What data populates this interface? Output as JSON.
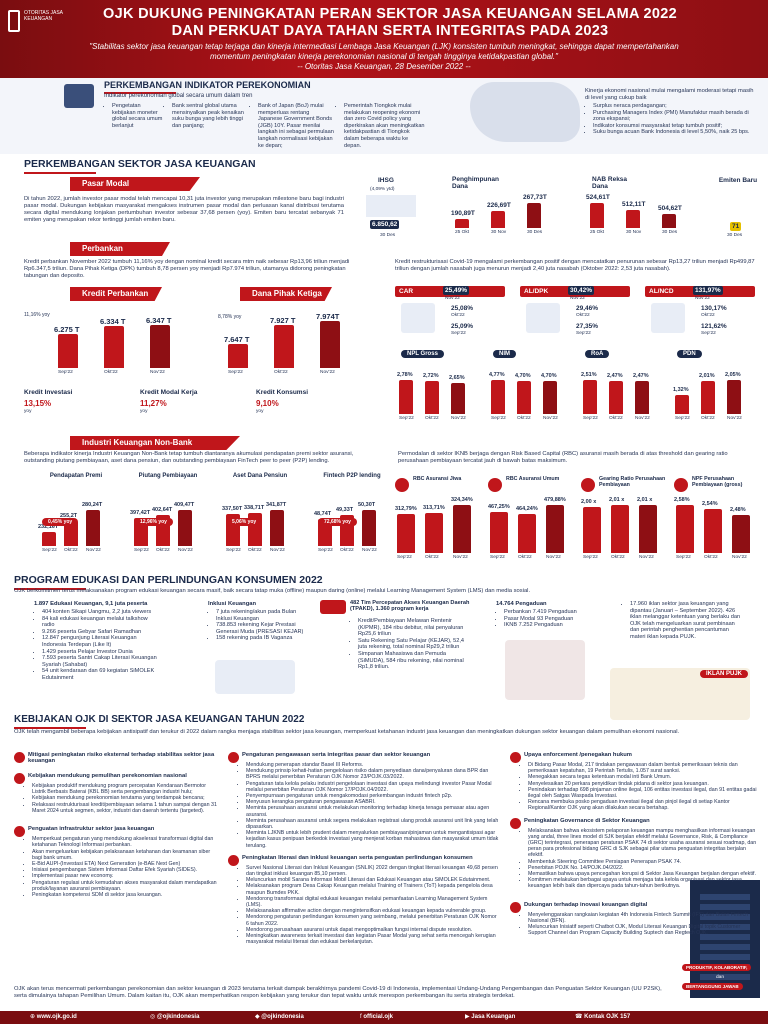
{
  "header": {
    "logo_text": "OTORITAS JASA KEUANGAN",
    "title_line1": "OJK DUKUNG PENINGKATAN PERAN SEKTOR JASA KEUANGAN SELAMA 2022",
    "title_line2": "DAN PERKUAT DAYA TAHAN SERTA INTEGRITAS PADA 2023",
    "quote_line1": "\"Stabilitas sektor jasa keuangan tetap terjaga dan kinerja intermediasi Lembaga Jasa Keuangan (LJK) konsisten tumbuh meningkat, sehingga dapat mempertahankan",
    "quote_line2": "momentum peningkatan kinerja perekonomian nasional di tengah tingginya ketidakpastian global.\"",
    "quote_line3": "-- Otoritas Jasa Keuangan, 28 Desember 2022 --"
  },
  "macro": {
    "title": "PERKEMBANGAN INDIKATOR PEREKONOMIAN",
    "subtitle": "Indikator perekonomian global secara umum dalam tren",
    "items": [
      "Pengetatan kebijakan moneter global secara umum berlanjut",
      "Bank sentral global utama mensinyalkan peak kenaikan suku bunga yang lebih tinggi dan panjang;",
      "Bank of Japan (BoJ) mulai memperluas rentang Japanese Government Bonds (JGB) 10Y. Pasar menilai langkah ini sebagai permulaan langkah normalisasi kebijakan ke depan;",
      "Pemerintah Tiongkok mulai melakukan reopening ekonomi dan zero Covid policy yang diperkirakan akan meningkatkan ketidakpastian di Tiongkok dalam beberapa waktu ke depan."
    ],
    "domestic_intro": "Kinerja ekonomi nasional mulai mengalami moderasi tetapi masih di level yang cukup baik",
    "domestic": [
      "Surplus neraca perdagangan;",
      "Purchasing Managers Index (PMI) Manufaktur masih berada di zona ekspansi;",
      "Indikator konsumsi masyarakat tetap tumbuh positif;",
      "Suku bunga acuan Bank Indonesia di level 5,50%, naik 25 bps."
    ]
  },
  "sjk": {
    "title": "PERKEMBANGAN SEKTOR JASA KEUANGAN",
    "pasar_modal": {
      "ribbon": "Pasar Modal",
      "text": "Di tahun 2022, jumlah investor pasar modal telah mencapai 10,31 juta investor yang merupakan milestone baru bagi industri pasar modal. Dukungan kebijakan masyarakat mengakses instrumen pasar modal dan perluasan kanal distribusi terutama secara digital mendukung lonjakan pertumbuhan investor sebesar 37,68 persen (yoy). Emiten baru tercatat sebanyak 71 emiten yang merupakan rekor tertinggi jumlah emiten baru.",
      "ihsg": {
        "label": "IHSG",
        "sub": "(4,09% ytd)",
        "value": "6.850,62",
        "date": "30 Des"
      },
      "dana": {
        "label": "Penghimpunan Dana",
        "values": [
          "190,89T",
          "226,69T",
          "267,73T"
        ],
        "dates": [
          "25 Okt",
          "30 Nov",
          "30 Des"
        ]
      },
      "nab": {
        "label": "NAB Reksa Dana",
        "values": [
          "524,61T",
          "512,11T",
          "504,62T"
        ],
        "dates": [
          "25 Okt",
          "30 Nov",
          "30 Des"
        ]
      },
      "emiten": {
        "label": "Emiten Baru",
        "value": "71",
        "date": "30 Des"
      }
    },
    "perbankan": {
      "ribbon": "Perbankan",
      "text_left": "Kredit perbankan November 2022 tumbuh 11,16% yoy dengan nominal kredit secara mtm naik sebesar Rp13,96 triliun menjadi Rp6.347,5 triliun. Dana Pihak Ketiga (DPK) tumbuh 8,78 persen yoy menjadi Rp7.974 triliun, utamanya didorong peningkatan tabungan dan deposito.",
      "text_right": "Kredit restrukturisasi Covid-19 mengalami perkembangan positif dengan mencatatkan penurunan sebesar Rp13,27 triliun menjadi Rp499,87 triliun dengan jumlah nasabah juga menurun menjadi 2,40 juta nasabah (Oktober 2022: 2,53 juta nasabah).",
      "kredit": {
        "label": "Kredit Perbankan",
        "pct": "11,16% yoy",
        "values": [
          "6.275 T",
          "6.334 T",
          "6.347 T"
        ],
        "months": [
          "Sep'22",
          "Okt'22",
          "Nov'22"
        ]
      },
      "dpk": {
        "label": "Dana Pihak Ketiga",
        "pct": "8,78% yoy",
        "values": [
          "7.647 T",
          "7.927 T",
          "7.974T"
        ],
        "months": [
          "Sep'22",
          "Okt'22",
          "Nov'22"
        ]
      },
      "kinds": [
        {
          "label": "Kredit Investasi",
          "value": "13,15%",
          "unit": "yoy"
        },
        {
          "label": "Kredit Modal Kerja",
          "value": "11,27%",
          "unit": "yoy"
        },
        {
          "label": "Kredit Konsumsi",
          "value": "9,10%",
          "unit": "yoy"
        }
      ],
      "ratios": [
        {
          "label": "CAR",
          "v1": "25,49%",
          "m1": "Nov'22",
          "v2": "25,08%",
          "m2": "Okt'22",
          "v3": "25,09%",
          "m3": "Sep'22"
        },
        {
          "label": "AL/DPK",
          "v1": "30,42%",
          "m1": "Nov'22",
          "v2": "29,46%",
          "m2": "Okt'22",
          "v3": "27,35%",
          "m3": "Sep'22"
        },
        {
          "label": "AL/NCD",
          "v1": "131,97%",
          "m1": "Nov'22",
          "v2": "130,17%",
          "m2": "Okt'22",
          "v3": "121,62%",
          "m3": "Sep'22"
        }
      ],
      "npl": [
        {
          "label": "NPL Gross",
          "values": [
            "2,78%",
            "2,72%",
            "2,65%"
          ]
        },
        {
          "label": "NIM",
          "values": [
            "4,77%",
            "4,70%",
            "4,70%"
          ]
        },
        {
          "label": "RoA",
          "values": [
            "2,51%",
            "2,47%",
            "2,47%"
          ]
        },
        {
          "label": "PDN",
          "values": [
            "1,32%",
            "2,01%",
            "2,05%"
          ]
        }
      ],
      "npl_months": [
        "Sep'22",
        "Okt'22",
        "Nov'22"
      ]
    },
    "iknb": {
      "ribbon": "Industri Keuangan Non-Bank",
      "text_left": "Beberapa indikator kinerja Industri Keuangan Non-Bank tetap tumbuh diantaranya akumulasi pendapatan premi sektor asuransi, outstanding piutang pembiayaan, aset dana pensiun, dan outstanding pembiayaan FinTech peer to peer (P2P) lending.",
      "text_right": "Permodalan di sektor IKNB berjaga dengan Risk Based Capital (RBC) asuransi masih berada di atas threshold dan gearing ratio perusahaan pembiayaan tercatat jauh di bawah batas maksimum.",
      "cols": [
        {
          "label": "Pendapatan Premi",
          "values": [
            "232,16T",
            "255,2T",
            "280,24T"
          ],
          "pct": "0,45% yoy"
        },
        {
          "label": "Piutang Pembiayaan",
          "values": [
            "397,42T",
            "402,64T",
            "409,47T"
          ],
          "pct": "12,96% yoy"
        },
        {
          "label": "Aset Dana Pensiun",
          "values": [
            "337,50T",
            "338,71T",
            "341,87T"
          ],
          "pct": "5,06% yoy"
        },
        {
          "label": "Fintech P2P lending",
          "values": [
            "48,74T",
            "49,33T",
            "50,30T"
          ],
          "pct": "72,68% yoy"
        }
      ],
      "months": [
        "Sep'22",
        "Okt'22",
        "Nov'22"
      ],
      "rbc": [
        {
          "label": "RBC Asuransi Jiwa",
          "values": [
            "312,79%",
            "313,71%",
            "324,34%"
          ]
        },
        {
          "label": "RBC Asuransi Umum",
          "values": [
            "467,25%",
            "464,24%",
            "479,88%"
          ]
        },
        {
          "label": "Gearing Ratio Perusahaan Pembiayaan",
          "values": [
            "2,00 x",
            "2,01 x",
            "2,01 x"
          ]
        },
        {
          "label": "NPF Perusahaan Pembiayaan (gross)",
          "values": [
            "2,58%",
            "2,54%",
            "2,48%"
          ]
        }
      ]
    }
  },
  "edukasi": {
    "title": "PROGRAM EDUKASI DAN PERLINDUNGAN KONSUMEN 2022",
    "intro": "OJK berkomitmen terus melaksanakan program edukasi keuangan secara masif, baik secara tatap muka (offline) maupun daring (online) melalui Learning Management System (LMS) dan media sosial.",
    "col1_head": "1.897 Edukasi Keuangan, 9,1 juta peserta",
    "col1": [
      "404 konten Sikapi Uangmu, 2,2 juta viewers",
      "84 kali edukasi keuangan melalui talkshow radio",
      "9.266 peserta Gebyar Safari Ramadhan",
      "12.847 pengunjung Literasi Keuangan Indonesia Terdepan (Like It)",
      "1.429 peserta Pelajar Investor Dunia",
      "7.593 peserta Santri Cakap Literasi Keuangan Syariah (Sahabat)",
      "54 unit kendaraan dan 69 kegiatan SiMOLEK Edutainment"
    ],
    "col2_head": "Inklusi Keuangan",
    "col2": [
      "7 juta rekening/akun pada Bulan Inklusi Keuangan",
      "738.853 rekening Kejar Prestasi Generasi Muda (PRESASI KEJAR)",
      "158 rekening pada IB Vaganza"
    ],
    "col3_head": "482 Tim Percepatan Akses Keuangan Daerah (TPAKD), 1.360 program kerja",
    "col3": [
      "Kredit/Pembiayaan Melawan Rentenir (K/PMR), 184 ribu debitur, nilai penyaluran Rp25,6 triliun",
      "Satu Rekening Satu Pelajar (KEJAR), 52,4 juta rekening, total nominal Rp29,2 triliun",
      "Simpanan Mahasiswa dan Pemuda (SiMUDA), 584 ribu rekening, nilai nominal Rp1,8 triliun."
    ],
    "col4_head": "14.764 Pengaduan",
    "col4": [
      "Perbankan 7.419 Pengaduan",
      "Pasar Modal 93 Pengaduan",
      "IKNB 7.252 Pengaduan"
    ],
    "col5": "17.960 iklan sektor jasa keuangan yang dipantau (Januari – September 2022). 426 iklan melanggar ketentuan yang berlaku dan OJK telah mengeluarkan surat pembinaan dan perintah penghentian pencantuman materi iklan kepada PUJK.",
    "iklan_badge": "IKLAN PUJK"
  },
  "kebijakan": {
    "title": "KEBIJAKAN OJK DI SEKTOR JASA KEUANGAN TAHUN 2022",
    "intro": "OJK telah mengambil beberapa kebijakan antisipatif dan terukur di 2022 dalam rangka menjaga stabilitas sektor jasa keuangan, memperkuat ketahanan industri jasa keuangan dan meningkatkan dukungan sektor keuangan dalam pemulihan ekonomi nasional.",
    "left": [
      {
        "head": "Mitigasi peningkatan risiko eksternal terhadap stabilitas sektor jasa keuangan",
        "items": []
      },
      {
        "head": "Kebijakan mendukung pemulihan perekonomian nasional",
        "items": [
          "Kebijakan produktif mendukung program percepatan Kendaraan Bermotor Listrik Berbasis Baterai (KBL BB) serta pengembangan industri hulu;",
          "Kebijakan mendukung perekonomian terutama yang terdampak bencana;",
          "Relaksasi restrukturisasi kredit/pembiayaan selama 1 tahun sampai dengan 31 Maret 2024 untuk segmen, sektor, industri dan daerah tertentu (targeted)."
        ]
      },
      {
        "head": "Penguatan infrastruktur sektor jasa keuangan",
        "items": [
          "Memperkuat pengaturan yang mendukung akselerasi transformasi digital dan ketahanan Teknologi Informasi perbankan.",
          "Akan mengeluarkan kebijakan pelaksanaan ketahanan dan keamanan siber bagi bank umum.",
          "E-Bid AUPI-(Investasi ETA) Next Generation (e-BAE Next Gen)",
          "Inisiasi pengembangan Sistem Informasi Daftar Efek Syariah (SIDES).",
          "Implementasi pasar new economy.",
          "Pengaturan regulasi untuk kemudahan akses masyarakat dalam mendapatkan produk/layanan asuransi pembiayaan.",
          "Peningkatan kompetensi SDM di sektor jasa keuangan."
        ]
      }
    ],
    "mid": [
      {
        "head": "Pengaturan pengawasan serta integritas pasar dan sektor keuangan",
        "items": [
          "Mendukung penerapan standar Basel III Reforms.",
          "Mendukung prinsip kehati-hatian pengelolaan risiko dalam penyediaan dana/penyaluran dana BPR dan BPRS melalui penerbitan Peraturan OJK Nomor 23/POJK.03/2022.",
          "Pengaturan tata kelola pelaku industri pengelolaan investasi dan upaya melindungi investor Pasar Modal melalui penerbitan Peraturan OJK Nomor 17/POJK.04/2022.",
          "Penyempurnaan pengaturan untuk mengakomodasi perkembangan industri fintech p2p.",
          "Menyusun kerangka pengaturan pengawasan ASABRI.",
          "Meminta perusahaan asuransi untuk melakukan monitoring terhadap kinerja tenaga pemasar atau agen asuransi.",
          "Meminta perusahaan asuransi untuk segera melakukan registrasi ulang produk asuransi unit link yang telah dipasarkan.",
          "Meminta LJKNB untuk lebih prudent dalam menyalurkan pembiayaan/pinjaman untuk mengantisipasi agar kejadian kasus penipuan berkedok investasi yang menjerat korban mahasiswa dan masyarakat umum tidak terulang."
        ]
      },
      {
        "head": "Peningkatan literasi dan inklusi keuangan serta penguatan perlindungan konsumen",
        "items": [
          "Survei Nasional Literasi dan Inklusi Keuangan (SNLIK) 2022 dengan tingkat literasi keuangan 49,68 persen dan tingkat inklusi keuangan 85,10 persen.",
          "Meluncurkan mobil Sarana Informasi Mobil Literasi dan Edukasi Keuangan atau SiMOLEK Edutainment.",
          "Melaksanakan program Desa Cakap Keuangan melalui Training of Trainers (ToT) kepada pengelola desa maupun Bumdes PKK.",
          "Mendorong transformasi digital edukasi keuangan melalui pemanfaatan Learning Management System (LMS).",
          "Melaksanakan affirmative action dengan mengintensifkan edukasi keuangan kepada vulnerable group.",
          "Mendorong pengaturan perlindungan konsumen yang seimbang, melalui penerbitan Peraturan OJK Nomor 6 tahun 2022.",
          "Mendorong perusahaan asuransi untuk dapat mengoptimalkan fungsi internal dispute resolution.",
          "Meningkatkan awareness terkait investasi dan kegiatan Pasar Modal yang sehat serta mencegah kerugian masyarakat melalui literasi dan edukasi berkelanjutan."
        ]
      }
    ],
    "right": [
      {
        "head": "Upaya enforcement /penegakan hukum",
        "items": [
          "Di Bidang Pasar Modal, 217 tindakan pengawasan dalam bentuk pemeriksaan teknis dan pemeriksaan kepatuhan, 19 Perintah Tertulis, 1.057 surat sanksi.",
          "Menegakkan secara tegas ketentuan modal inti Bank Umum.",
          "Menyelesaikan 20 perkara penyidikan tindak pidana di sektor jasa keuangan.",
          "Penindakan terhadap 698 pinjaman online ilegal, 106 entitas investasi ilegal, dan 91 entitas gadai ilegal oleh Satgas Waspada Investasi.",
          "Rencana membuka posko pengaduan investasi ilegal dan pinjol ilegal di setiap Kantor Regional/Kantor OJK yang akan dilakukan secara bertahap."
        ]
      },
      {
        "head": "Peningkatan Governance di Sektor Keuangan",
        "items": [
          "Melaksanakan bahwa ekosistem pelaporan keuangan mampu menghasilkan informasi keuangan yang andal, three lines model di SJK berjalan efektif melalui Governance, Risk, & Compliance (GRC) terintegrasi, penerapan peraturan PSAK 74 di sektor usaha asuransi sesuai roadmap, dan peran para profesional bidang GRC di SJK sebagai pilar utama penguatan integritas berjalan efektif.",
          "Membentuk Steering Committee Persiapan Penerapan PSAK 74.",
          "Penerbitan POJK No. 14/POJK.04/2022.",
          "Memastikan bahwa upaya pencegahan korupsi di Sektor Jasa Keuangan berjalan dengan efektif.",
          "Komitmen melakukan berbagai upaya untuk menjaga tata kelola organisasi dan sektor jasa keuangan lebih baik dan dipercaya pada tahun-tahun berikutnya."
        ]
      },
      {
        "head": "Dukungan terhadap inovasi keuangan digital",
        "items": [
          "Menyelenggarakan rangkaian kegiatan 4th Indonesia Fintech Summit (IFS) dan Bulan Fintech Nasional (BFN).",
          "Meluncurkan Inisiatif seperti Chatbot OJK, Modul Literasi Keuangan Digital topik Customer Support Channel dan Program Capacity Building Suptech dan Regtech OJK."
        ]
      }
    ],
    "building_labels": [
      "PRODUKTIF, KOLABORATIF,",
      "dan",
      "BERTANGGUNG JAWAB"
    ],
    "outro": "OJK akan terus mencermati perkembangan perekonomian dan sektor keuangan di 2023 terutama terkait dampak berakhirnya pandemi Covid-19 di Indonesia, implementasi Undang-Undang Pengembangan dan Penguatan Sektor Keuangan (UU P2SK), serta dimulainya tahapan Pemilihan Umum. Dalam kaitan itu, OJK akan memperhatikan respon kebijakan yang terukur dan tepat waktu untuk merespon perkembangan itu serta strategis terdekat."
  },
  "footer": {
    "web": "www.ojk.go.id",
    "ig": "@ojkindonesia",
    "tw": "@ojkindonesia",
    "fb": "official.ojk",
    "yt": "Jasa Keuangan",
    "phone": "Kontak OJK 157"
  },
  "colors": {
    "brand_red": "#c0161b",
    "navy": "#1b2a4a",
    "dark_red": "#7a0d10"
  }
}
